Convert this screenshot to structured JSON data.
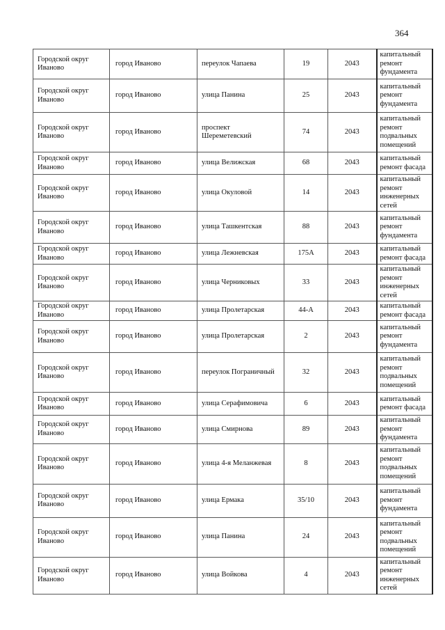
{
  "page_number": "364",
  "rows": [
    {
      "district": "Городской округ Иваново",
      "city": "город Иваново",
      "street": "переулок Чапаева",
      "house": "19",
      "year": "2043",
      "work": "капитальный ремонт фундамента"
    },
    {
      "district": "Городской округ Иваново",
      "city": "город Иваново",
      "street": "улица Панина",
      "house": "25",
      "year": "2043",
      "work": "капитальный ремонт фундамента"
    },
    {
      "district": "Городской округ Иваново",
      "city": "город Иваново",
      "street": "проспект Шереметевский",
      "house": "74",
      "year": "2043",
      "work": "капитальный ремонт подвальных помещений"
    },
    {
      "district": "Городской округ Иваново",
      "city": "город Иваново",
      "street": "улица Велижская",
      "house": "68",
      "year": "2043",
      "work": "капитальный ремонт фасада"
    },
    {
      "district": "Городской округ Иваново",
      "city": "город Иваново",
      "street": "улица Окуловой",
      "house": "14",
      "year": "2043",
      "work": "капитальный ремонт инженерных сетей"
    },
    {
      "district": "Городской округ Иваново",
      "city": "город Иваново",
      "street": "улица Ташкентская",
      "house": "88",
      "year": "2043",
      "work": "капитальный ремонт фундамента"
    },
    {
      "district": "Городской округ Иваново",
      "city": "город Иваново",
      "street": "улица Лежневская",
      "house": "175А",
      "year": "2043",
      "work": "капитальный ремонт фасада"
    },
    {
      "district": "Городской округ Иваново",
      "city": "город Иваново",
      "street": "улица Черниковых",
      "house": "33",
      "year": "2043",
      "work": "капитальный ремонт инженерных сетей"
    },
    {
      "district": "Городской округ Иваново",
      "city": "город Иваново",
      "street": "улица Пролетарская",
      "house": "44-А",
      "year": "2043",
      "work": "капитальный ремонт фасада"
    },
    {
      "district": "Городской округ Иваново",
      "city": "город Иваново",
      "street": "улица Пролетарская",
      "house": "2",
      "year": "2043",
      "work": "капитальный ремонт фундамента"
    },
    {
      "district": "Городской округ Иваново",
      "city": "город Иваново",
      "street": "переулок Пограничный",
      "house": "32",
      "year": "2043",
      "work": "капитальный ремонт подвальных помещений"
    },
    {
      "district": "Городской округ Иваново",
      "city": "город Иваново",
      "street": "улица Серафимовича",
      "house": "6",
      "year": "2043",
      "work": "капитальный ремонт фасада"
    },
    {
      "district": "Городской округ Иваново",
      "city": "город Иваново",
      "street": "улица Смирнова",
      "house": "89",
      "year": "2043",
      "work": "капитальный ремонт фундамента"
    },
    {
      "district": "Городской округ Иваново",
      "city": "город Иваново",
      "street": "улица 4-я Меланжевая",
      "house": "8",
      "year": "2043",
      "work": "капитальный ремонт подвальных помещений"
    },
    {
      "district": "Городской округ Иваново",
      "city": "город Иваново",
      "street": "улица Ермака",
      "house": "35/10",
      "year": "2043",
      "work": "капитальный ремонт фундамента"
    },
    {
      "district": "Городской округ Иваново",
      "city": "город Иваново",
      "street": "улица Панина",
      "house": "24",
      "year": "2043",
      "work": "капитальный ремонт подвальных помещений"
    },
    {
      "district": "Городской округ Иваново",
      "city": "город Иваново",
      "street": "улица Войкова",
      "house": "4",
      "year": "2043",
      "work": "капитальный ремонт инженерных сетей"
    }
  ]
}
